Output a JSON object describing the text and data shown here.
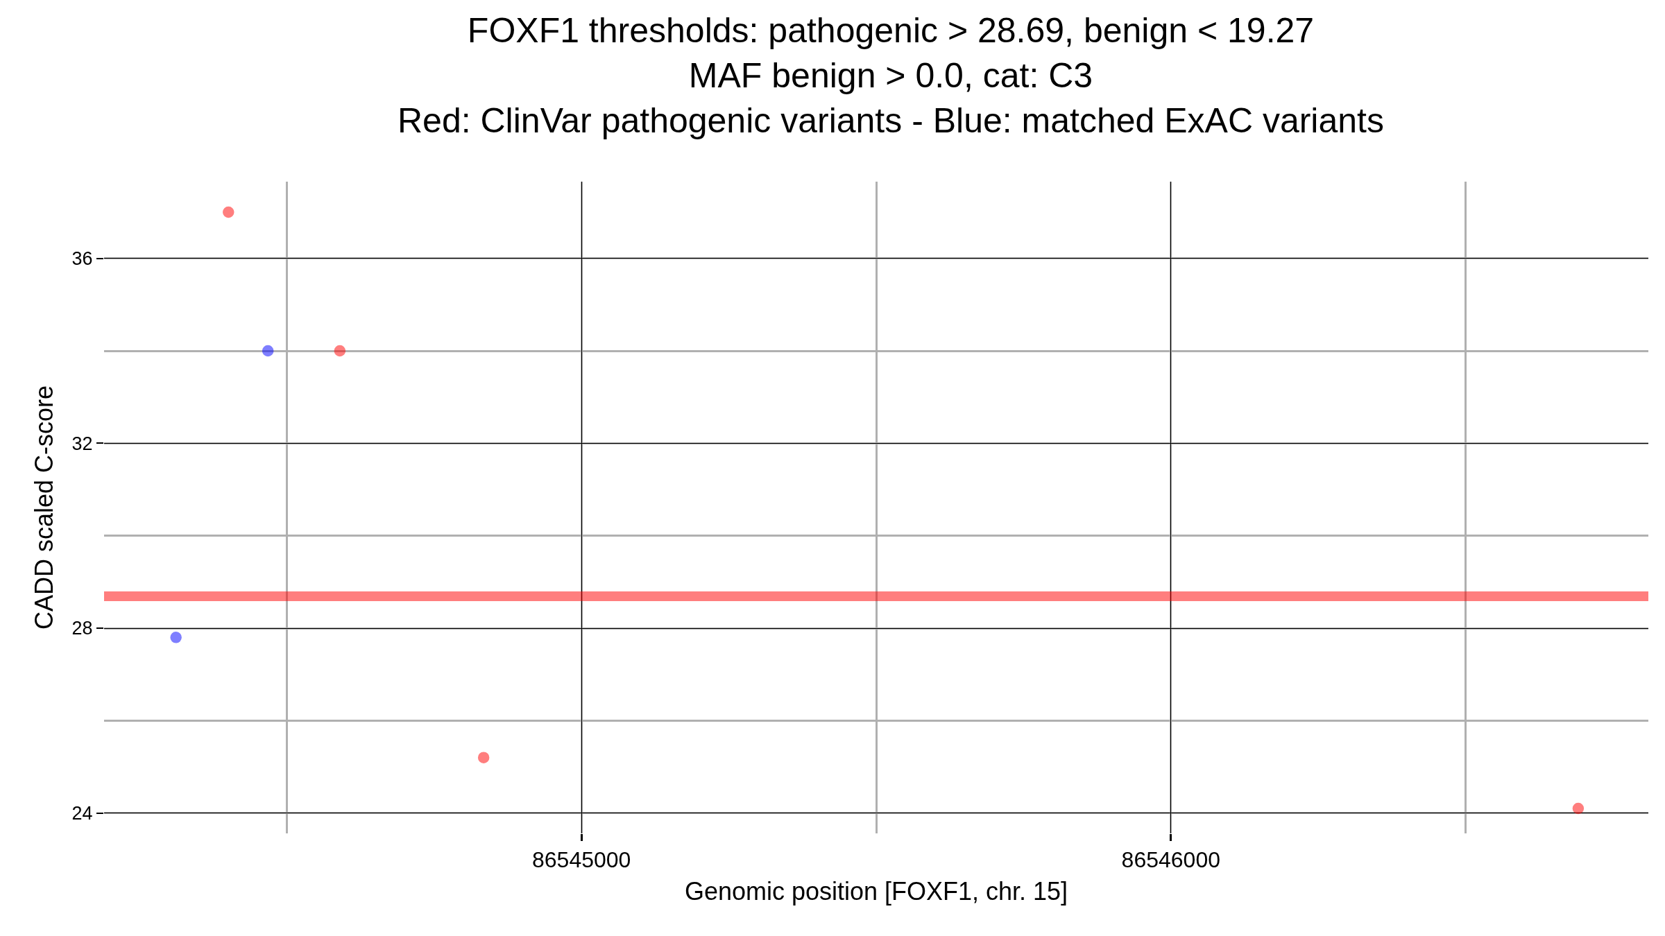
{
  "chart_data": {
    "type": "scatter",
    "title": "FOXF1 thresholds: pathogenic > 28.69, benign < 19.27\nMAF benign > 0.0, cat: C3\nRed: ClinVar pathogenic variants - Blue: matched ExAC variants",
    "xlabel": "Genomic position [FOXF1, chr. 15]",
    "ylabel": "CADD scaled C-score",
    "series": [
      {
        "color": "#ff0000",
        "x": [
          86544401,
          86544590,
          86544834,
          86546691
        ],
        "values": [
          37.0,
          34.0,
          25.2,
          24.1
        ]
      },
      {
        "color": "#0000ff",
        "x": [
          86544468,
          86544312
        ],
        "values": [
          34.0,
          27.8
        ]
      }
    ],
    "xlim": [
      86544190,
      86546810
    ],
    "ylim": [
      23.56,
      37.66
    ],
    "xticks": [
      86545000,
      86546000
    ],
    "yticks": [
      24,
      28,
      32,
      36
    ],
    "ref_lines": [
      {
        "axis": "y",
        "value": 28.69,
        "color": "#ff0000"
      }
    ],
    "grid": true
  }
}
